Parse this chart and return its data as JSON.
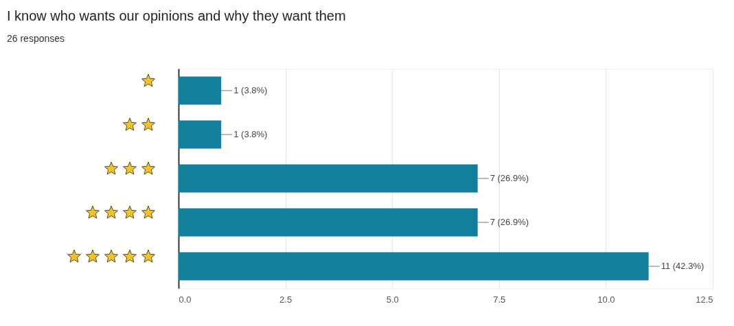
{
  "chart_data": {
    "type": "bar",
    "orientation": "horizontal",
    "title": "I know who wants our opinions and why they want them",
    "subtitle": "26 responses",
    "categories": [
      null,
      null,
      null,
      null,
      null
    ],
    "values": [
      1,
      1,
      7,
      7,
      11
    ],
    "value_labels": [
      "1 (3.8%)",
      "1 (3.8%)",
      "7 (26.9%)",
      "7 (26.9%)",
      "11 (42.3%)"
    ],
    "color": "#137f9b",
    "xlim": [
      0,
      12.5
    ],
    "xticks": [
      {
        "value": 0,
        "label": "0.0"
      },
      {
        "value": 2.5,
        "label": "2.5"
      },
      {
        "value": 5,
        "label": "5.0"
      },
      {
        "value": 7.5,
        "label": "7.5"
      },
      {
        "value": 10,
        "label": "10.0"
      },
      {
        "value": 12.5,
        "label": "12.5"
      }
    ],
    "grid": "x"
  }
}
